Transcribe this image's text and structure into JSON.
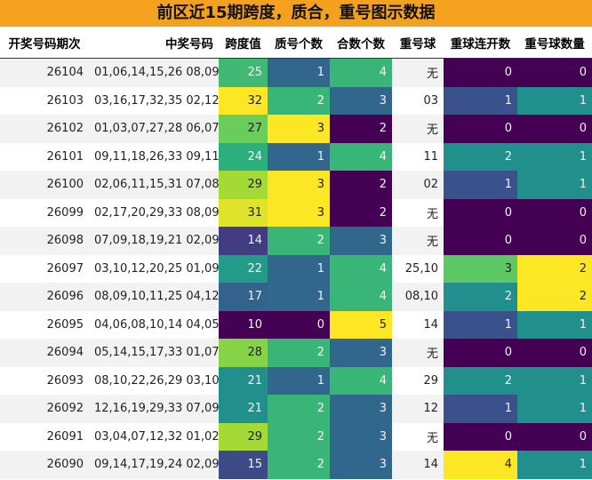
{
  "title": "前区近15期跨度，质合，重号图示数据",
  "colors": {
    "title_bg": "#f4a21e"
  },
  "columns": [
    "开奖号码期次",
    "中奖号码",
    "跨度值",
    "质号个数",
    "合数个数",
    "重号球",
    "重球连开数",
    "重号球数量"
  ],
  "chart_data": {
    "type": "table",
    "columns": [
      "开奖号码期次",
      "中奖号码",
      "跨度值",
      "质号个数",
      "合数个数",
      "重号球",
      "重球连开数",
      "重号球数量"
    ],
    "rows": [
      [
        "26104",
        "01,06,14,15,26 08,09",
        25,
        1,
        4,
        "无",
        0,
        0
      ],
      [
        "26103",
        "03,16,17,32,35 02,12",
        32,
        2,
        3,
        "03",
        1,
        1
      ],
      [
        "26102",
        "01,03,07,27,28 06,07",
        27,
        3,
        2,
        "无",
        0,
        0
      ],
      [
        "26101",
        "09,11,18,26,33 09,11",
        24,
        1,
        4,
        "11",
        2,
        1
      ],
      [
        "26100",
        "02,06,11,15,31 07,08",
        29,
        3,
        2,
        "02",
        1,
        1
      ],
      [
        "26099",
        "02,17,20,29,33 08,09",
        31,
        3,
        2,
        "无",
        0,
        0
      ],
      [
        "26098",
        "07,09,18,19,21 02,09",
        14,
        2,
        3,
        "无",
        0,
        0
      ],
      [
        "26097",
        "03,10,12,20,25 01,09",
        22,
        1,
        4,
        "25,10",
        3,
        2
      ],
      [
        "26096",
        "08,09,10,11,25 04,12",
        17,
        1,
        4,
        "08,10",
        2,
        2
      ],
      [
        "26095",
        "04,06,08,10,14 04,05",
        10,
        0,
        5,
        "14",
        1,
        1
      ],
      [
        "26094",
        "05,14,15,17,33 01,07",
        28,
        2,
        3,
        "无",
        0,
        0
      ],
      [
        "26093",
        "08,10,22,26,29 03,10",
        21,
        1,
        4,
        "29",
        2,
        1
      ],
      [
        "26092",
        "12,16,19,29,33 07,09",
        21,
        2,
        3,
        "12",
        1,
        1
      ],
      [
        "26091",
        "03,04,07,12,32 01,02",
        29,
        2,
        3,
        "无",
        0,
        0
      ],
      [
        "26090",
        "09,14,17,19,24 02,09",
        15,
        2,
        3,
        "14",
        4,
        1
      ]
    ]
  }
}
